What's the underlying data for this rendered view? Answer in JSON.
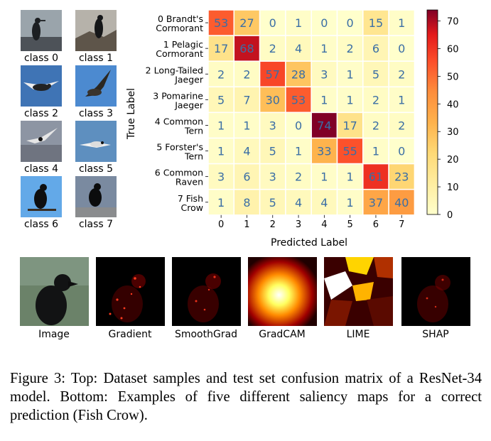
{
  "samples": {
    "labels": [
      "class 0",
      "class 1",
      "class 2",
      "class 3",
      "class 4",
      "class 5",
      "class 6",
      "class 7"
    ]
  },
  "chart_data": {
    "type": "heatmap",
    "title": "",
    "xlabel": "Predicted Label",
    "ylabel": "True Label",
    "x_ticks": [
      "0",
      "1",
      "2",
      "3",
      "4",
      "5",
      "6",
      "7"
    ],
    "y_ticks": [
      [
        "0 Brandt's",
        "Cormorant"
      ],
      [
        "1 Pelagic",
        "Cormorant"
      ],
      [
        "2 Long-Tailed",
        "Jaeger"
      ],
      [
        "3 Pomarine",
        "Jaeger"
      ],
      [
        "4 Common",
        "Tern"
      ],
      [
        "5 Forster's",
        "Tern"
      ],
      [
        "6 Common",
        "Raven"
      ],
      [
        "7 Fish",
        "Crow"
      ]
    ],
    "matrix": [
      [
        53,
        27,
        0,
        1,
        0,
        0,
        15,
        1
      ],
      [
        17,
        68,
        2,
        4,
        1,
        2,
        6,
        0
      ],
      [
        2,
        2,
        57,
        28,
        3,
        1,
        5,
        2
      ],
      [
        5,
        7,
        30,
        53,
        1,
        1,
        2,
        1
      ],
      [
        1,
        1,
        3,
        0,
        74,
        17,
        2,
        2
      ],
      [
        1,
        4,
        5,
        1,
        33,
        55,
        1,
        0
      ],
      [
        3,
        6,
        3,
        2,
        1,
        1,
        61,
        23
      ],
      [
        1,
        8,
        5,
        4,
        4,
        1,
        37,
        40
      ]
    ],
    "colorbar": {
      "range": [
        0,
        74
      ],
      "ticks": [
        0,
        10,
        20,
        30,
        40,
        50,
        60,
        70
      ],
      "colormap": "YlOrRd"
    }
  },
  "saliency": {
    "labels": [
      "Image",
      "Gradient",
      "SmoothGrad",
      "GradCAM",
      "LIME",
      "SHAP"
    ]
  },
  "caption": "Figure 3: Top: Dataset samples and test set confusion matrix of a ResNet-34 model. Bottom: Examples of five different saliency maps for a correct prediction (Fish Crow)."
}
